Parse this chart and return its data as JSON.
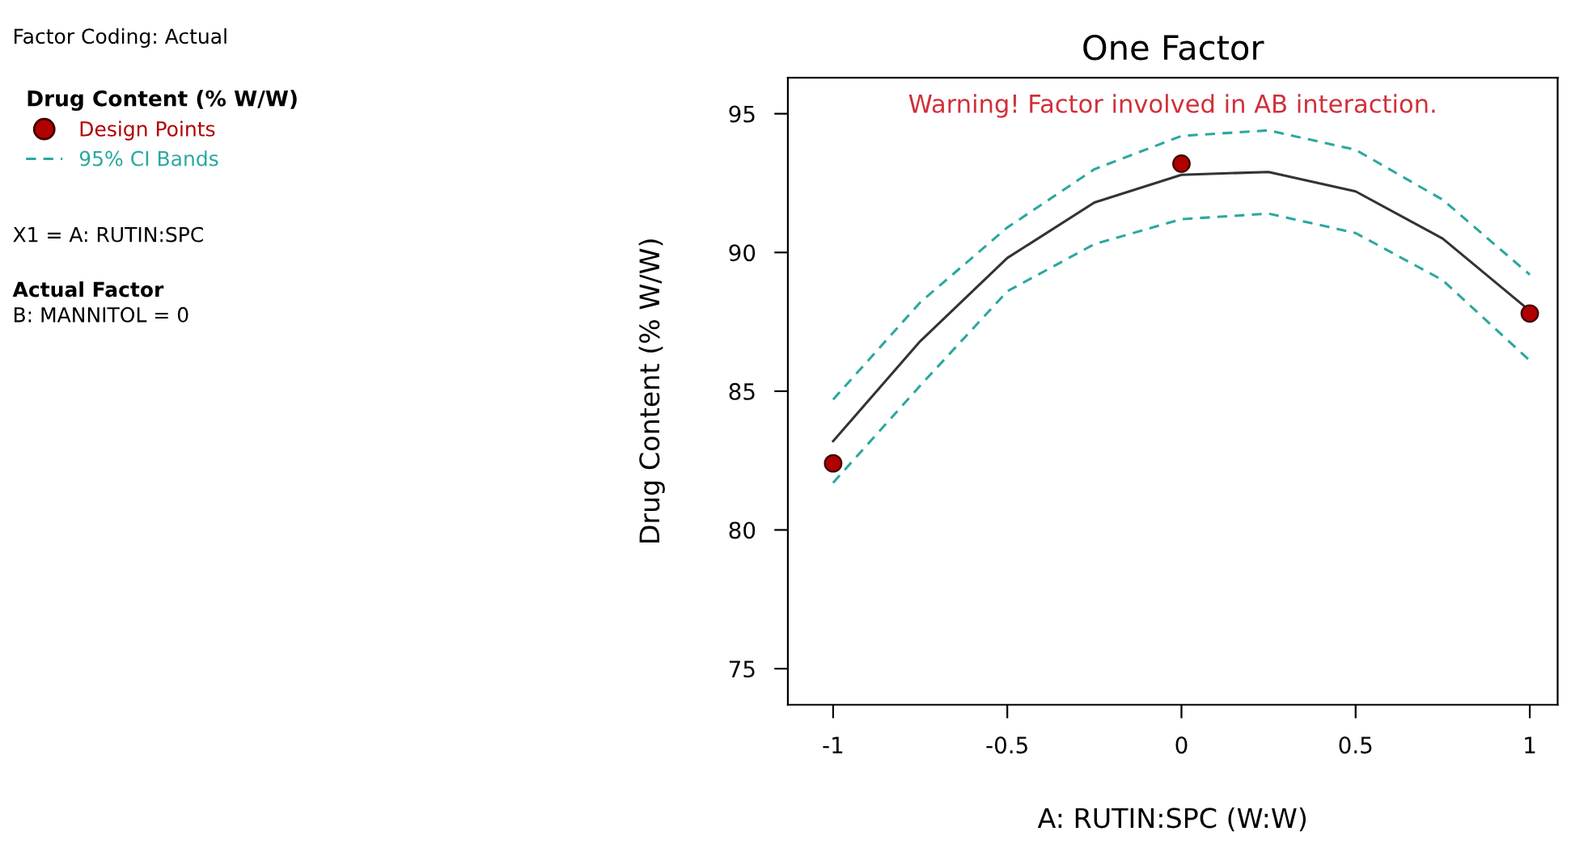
{
  "chart_data": {
    "type": "line",
    "title": "One Factor",
    "xlabel": "A: RUTIN:SPC (W:W)",
    "ylabel": "Drug Content (% W/W)",
    "legend_title": "Drug Content (% W/W)",
    "xlim": [
      -1.13,
      1.08
    ],
    "ylim": [
      73.7,
      96.3
    ],
    "xticks": [
      -1,
      -0.5,
      0,
      0.5,
      1
    ],
    "yticks": [
      75,
      80,
      85,
      90,
      95
    ],
    "grid": false,
    "legend": "left",
    "series": [
      {
        "color": "#333333",
        "line_style": "solid",
        "marker": "none",
        "x": [
          -1,
          -0.75,
          -0.5,
          -0.25,
          0,
          0.25,
          0.5,
          0.75,
          1
        ],
        "values": [
          83.2,
          86.8,
          89.8,
          91.8,
          92.8,
          92.9,
          92.2,
          90.5,
          87.9
        ]
      },
      {
        "name": "95% CI Bands",
        "color": "#2aa8a0",
        "line_style": "dashed",
        "marker": "none",
        "x": [
          -1,
          -0.75,
          -0.5,
          -0.25,
          0,
          0.25,
          0.5,
          0.75,
          1
        ],
        "values": [
          84.7,
          88.2,
          90.9,
          93.0,
          94.2,
          94.4,
          93.7,
          91.9,
          89.2
        ]
      },
      {
        "color": "#2aa8a0",
        "line_style": "dashed",
        "marker": "none",
        "x": [
          -1,
          -0.75,
          -0.5,
          -0.25,
          0,
          0.25,
          0.5,
          0.75,
          1
        ],
        "values": [
          81.7,
          85.2,
          88.6,
          90.3,
          91.2,
          91.4,
          90.7,
          89.0,
          86.1
        ]
      },
      {
        "name": "Design Points",
        "type": "scatter",
        "color": "#b00000",
        "marker": "circle",
        "x": [
          -1,
          0,
          1
        ],
        "values": [
          82.4,
          93.2,
          87.8
        ]
      }
    ],
    "annotations": [
      "Factor Coding: Actual",
      "X1 = A: RUTIN:SPC",
      "Actual Factor",
      "B: MANNITOL = 0",
      "Warning! Factor involved in AB interaction."
    ]
  }
}
